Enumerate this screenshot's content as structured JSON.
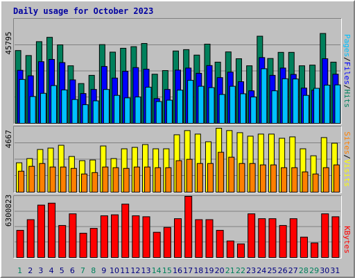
{
  "chart_data": {
    "type": "bar",
    "title": "Daily usage for October 2023",
    "days": [
      "1",
      "2",
      "3",
      "4",
      "5",
      "6",
      "7",
      "8",
      "9",
      "10",
      "11",
      "12",
      "13",
      "14",
      "15",
      "16",
      "17",
      "18",
      "19",
      "20",
      "21",
      "22",
      "23",
      "24",
      "25",
      "26",
      "27",
      "28",
      "29",
      "30",
      "31"
    ],
    "weekend_days": [
      "1",
      "7",
      "8",
      "14",
      "15",
      "21",
      "22",
      "28",
      "29"
    ],
    "colors": {
      "hits": "#00805c",
      "files": "#0000ff",
      "pages": "#00c0ff",
      "visits": "#ffff00",
      "sites": "#ff8000",
      "kbytes": "#ff0000",
      "weekday_label": "#000080",
      "weekend_label": "#00805c",
      "background": "#c0c0c0",
      "gridline": "#808080"
    },
    "panels": [
      {
        "id": "pages-files-hits",
        "ymax": 45795,
        "ymax_label": "45795",
        "legend": [
          {
            "text": "Pages",
            "color": "#00c0ff"
          },
          {
            "text": "/",
            "color": "#000000"
          },
          {
            "text": "Files",
            "color": "#0000ff"
          },
          {
            "text": "/",
            "color": "#000000"
          },
          {
            "text": "Hits",
            "color": "#00805c"
          }
        ],
        "series": [
          {
            "name": "Hits",
            "color": "#00805c",
            "values": [
              32000,
              29800,
              35900,
              37800,
              34500,
              25300,
              17500,
              21100,
              34600,
              31300,
              33000,
              33700,
              35100,
              21600,
              23200,
              31800,
              32400,
              30000,
              34800,
              26900,
              31400,
              28400,
              25300,
              38300,
              28500,
              31200,
              31200,
              25300,
              25600,
              39500,
              26900
            ]
          },
          {
            "name": "Files",
            "color": "#0000ff",
            "values": [
              23300,
              20900,
              27100,
              28100,
              26700,
              19100,
              13100,
              14900,
              25000,
              19900,
              22900,
              24500,
              23800,
              10900,
              14900,
              23400,
              24300,
              22000,
              25400,
              20100,
              22500,
              18300,
              14300,
              28900,
              21100,
              24300,
              21500,
              15500,
              14600,
              28400,
              21600
            ]
          },
          {
            "name": "Pages",
            "color": "#00c0ff",
            "values": [
              19300,
              11800,
              13200,
              16600,
              14700,
              10500,
              8200,
              9900,
              14900,
              12300,
              11200,
              11600,
              15900,
              9600,
              10200,
              14600,
              18900,
              16300,
              15700,
              12700,
              16300,
              13000,
              11600,
              24000,
              14300,
              19600,
              19500,
              12300,
              15400,
              16800,
              16900
            ]
          }
        ]
      },
      {
        "id": "sites-visits",
        "ymax": 4667,
        "ymax_label": "4667",
        "legend": [
          {
            "text": "Sites",
            "color": "#ff8000"
          },
          {
            "text": "/",
            "color": "#000000"
          },
          {
            "text": "Visits",
            "color": "#ffff00"
          }
        ],
        "series": [
          {
            "name": "Visits",
            "color": "#ffff00",
            "values": [
              2100,
              2400,
              3050,
              3150,
              3350,
              2550,
              2250,
              2300,
              3300,
              2400,
              3100,
              3200,
              3400,
              3100,
              3100,
              4100,
              4400,
              4150,
              3600,
              4567,
              4400,
              4250,
              4000,
              4150,
              4150,
              3850,
              3950,
              3100,
              2600,
              3900,
              3500
            ]
          },
          {
            "name": "Sites",
            "color": "#ff8000",
            "values": [
              1500,
              1850,
              2050,
              1800,
              1800,
              1700,
              1300,
              1400,
              1800,
              1750,
              1700,
              1800,
              1800,
              1750,
              1750,
              2250,
              2350,
              2050,
              2050,
              2850,
              2500,
              2050,
              2050,
              1950,
              1950,
              1750,
              1750,
              1450,
              1300,
              1750,
              1950
            ]
          }
        ]
      },
      {
        "id": "kbytes",
        "ymax": 6300823,
        "ymax_label": "6300823",
        "legend": [
          {
            "text": "KBytes",
            "color": "#ff0000"
          }
        ],
        "series": [
          {
            "name": "KBytes",
            "color": "#ff0000",
            "values": [
              2800000,
              3900000,
              5400000,
              5600000,
              3300000,
              4500000,
              2500000,
              3000000,
              4300000,
              4400000,
              5500000,
              4300000,
              4200000,
              2600000,
              3100000,
              4000000,
              6300823,
              3900000,
              3900000,
              2800000,
              1700000,
              1400000,
              4500000,
              4000000,
              4000000,
              3300000,
              4000000,
              2100000,
              1500000,
              4500000,
              4200000
            ]
          }
        ]
      }
    ]
  }
}
